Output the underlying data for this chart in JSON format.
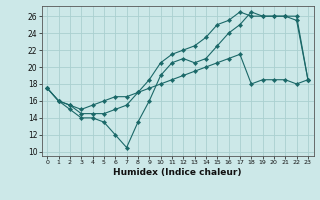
{
  "xlabel": "Humidex (Indice chaleur)",
  "bg_color": "#cce8e8",
  "grid_color": "#aad0d0",
  "line_color": "#1a6868",
  "xlim": [
    -0.5,
    23.5
  ],
  "ylim": [
    9.5,
    27.2
  ],
  "xticks": [
    0,
    1,
    2,
    3,
    4,
    5,
    6,
    7,
    8,
    9,
    10,
    11,
    12,
    13,
    14,
    15,
    16,
    17,
    18,
    19,
    20,
    21,
    22,
    23
  ],
  "yticks": [
    10,
    12,
    14,
    16,
    18,
    20,
    22,
    24,
    26
  ],
  "line1_x": [
    0,
    1,
    2,
    3,
    4,
    5,
    6,
    7,
    8,
    9,
    10,
    11,
    12,
    13,
    14,
    15,
    16,
    17,
    18,
    19,
    20,
    21,
    22,
    23
  ],
  "line1_y": [
    17.5,
    16.0,
    15.0,
    14.0,
    14.0,
    13.5,
    12.0,
    10.5,
    13.5,
    16.0,
    19.0,
    20.5,
    21.0,
    20.5,
    21.0,
    22.5,
    24.0,
    25.0,
    26.5,
    26.0,
    26.0,
    26.0,
    25.5,
    18.5
  ],
  "line2_x": [
    0,
    1,
    2,
    3,
    4,
    5,
    6,
    7,
    8,
    9,
    10,
    11,
    12,
    13,
    14,
    15,
    16,
    17,
    18,
    19,
    20,
    21,
    22,
    23
  ],
  "line2_y": [
    17.5,
    16.0,
    15.5,
    14.5,
    14.5,
    14.5,
    15.0,
    15.5,
    17.0,
    18.5,
    20.5,
    21.5,
    22.0,
    22.5,
    23.5,
    25.0,
    25.5,
    26.5,
    26.0,
    26.0,
    26.0,
    26.0,
    26.0,
    18.5
  ],
  "line3_x": [
    0,
    1,
    2,
    3,
    4,
    5,
    6,
    7,
    8,
    9,
    10,
    11,
    12,
    13,
    14,
    15,
    16,
    17,
    18,
    19,
    20,
    21,
    22,
    23
  ],
  "line3_y": [
    17.5,
    16.0,
    15.5,
    15.0,
    15.5,
    16.0,
    16.5,
    16.5,
    17.0,
    17.5,
    18.0,
    18.5,
    19.0,
    19.5,
    20.0,
    20.5,
    21.0,
    21.5,
    18.0,
    18.5,
    18.5,
    18.5,
    18.0,
    18.5
  ]
}
